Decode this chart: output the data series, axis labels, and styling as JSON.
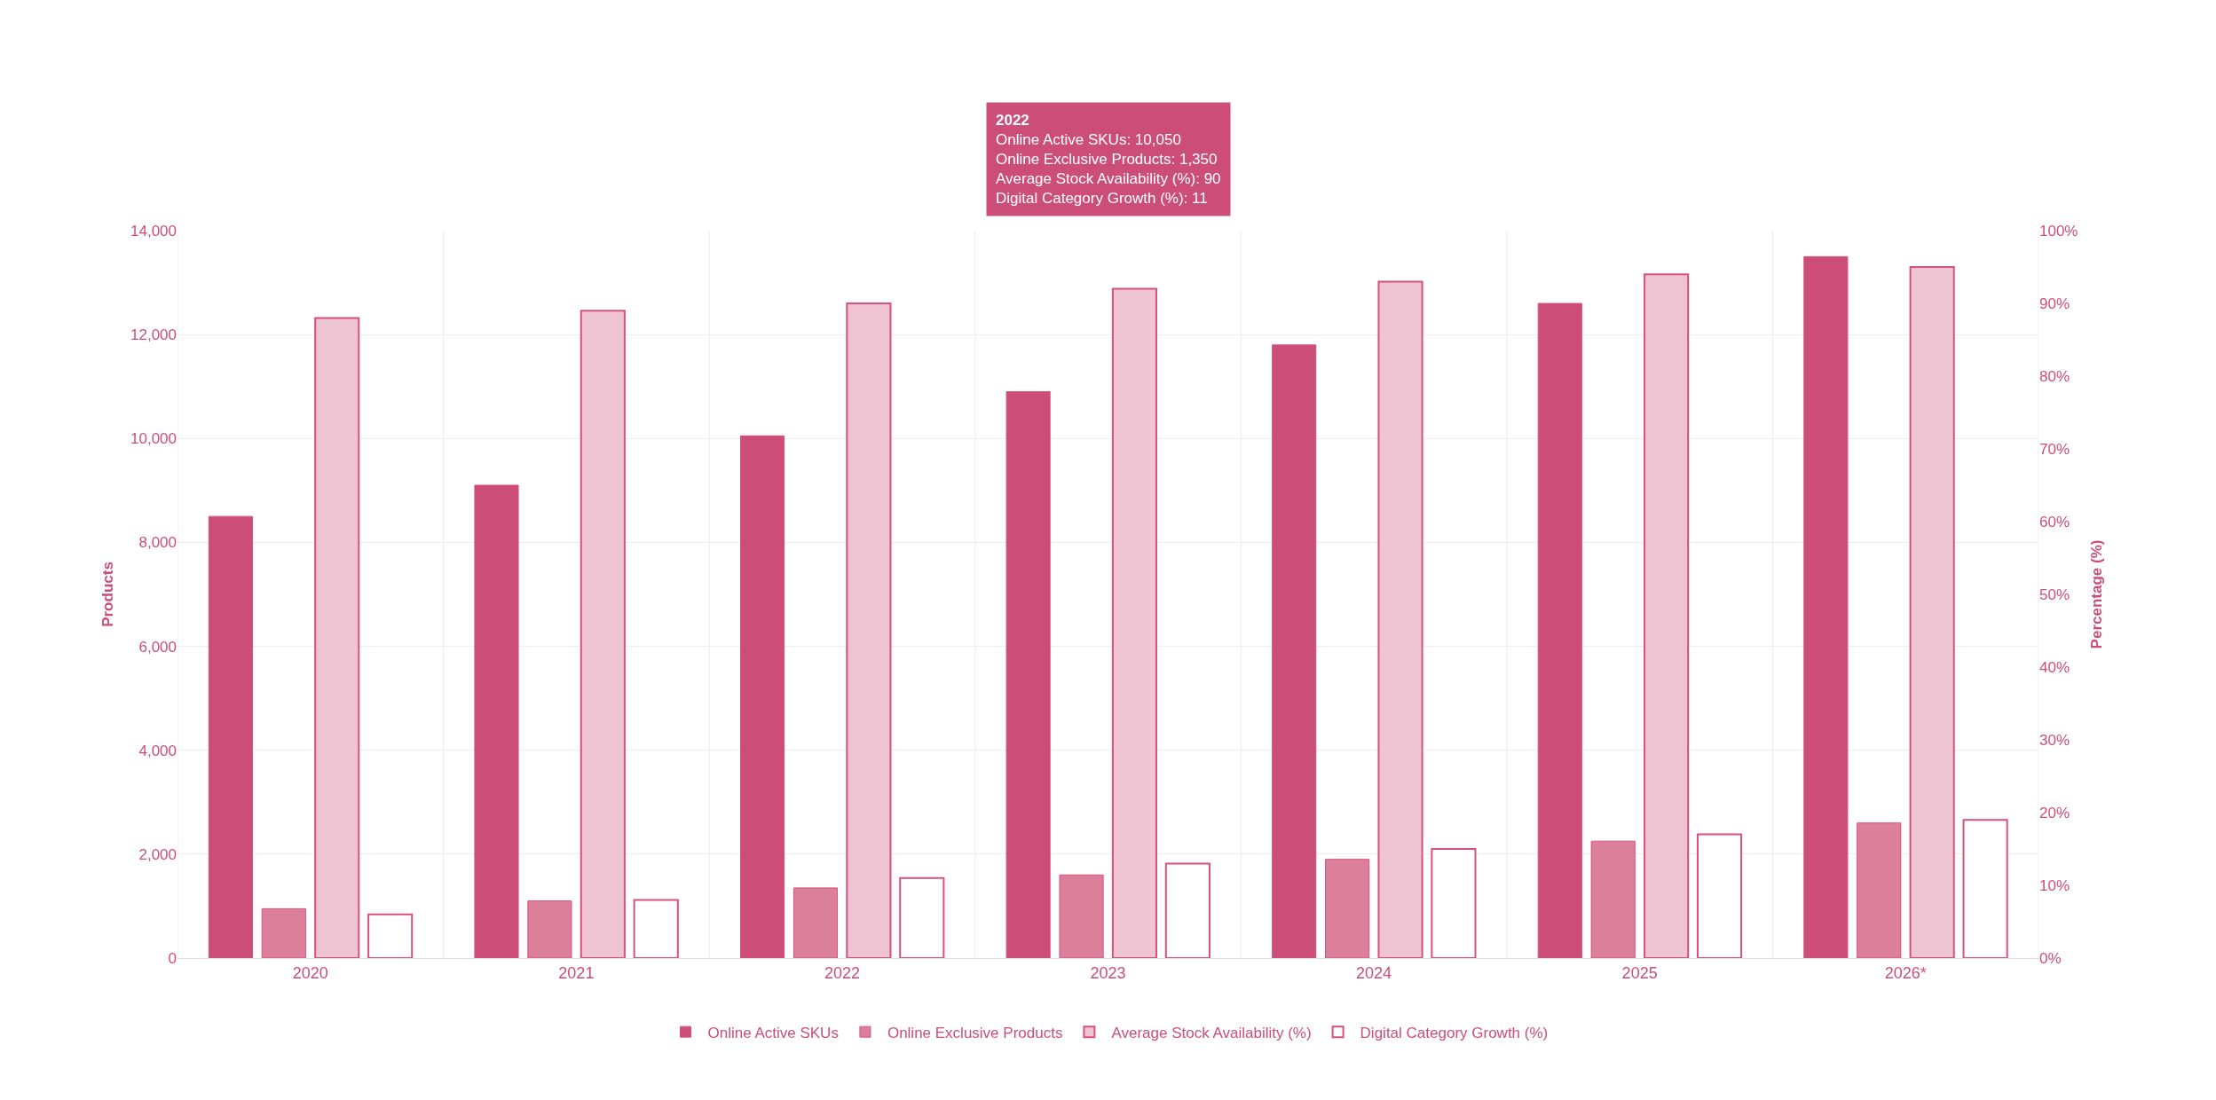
{
  "chart_data": {
    "type": "bar",
    "categories": [
      "2020",
      "2021",
      "2022",
      "2023",
      "2024",
      "2025",
      "2026*"
    ],
    "series": [
      {
        "name": "Online Active SKUs",
        "color": "#cc4e78",
        "values": [
          8500,
          9100,
          10050,
          10900,
          11800,
          12600,
          13500
        ]
      },
      {
        "name": "Online Exclusive Products",
        "color": "#dc7f9b",
        "values": [
          950,
          1100,
          1350,
          1600,
          1900,
          2250,
          2600
        ]
      },
      {
        "name": "Average Stock Availability (%)",
        "color": "#eec3d2",
        "axis": "y2",
        "values": [
          88,
          89,
          90,
          92,
          93,
          94,
          95
        ]
      },
      {
        "name": "Digital Category Growth (%)",
        "color": "#ffffff",
        "axis": "y2",
        "values": [
          6,
          8,
          11,
          13,
          15,
          17,
          19
        ]
      }
    ],
    "ylabel": "Products",
    "y2label": "Percentage (%)",
    "ylim": [
      0,
      14000
    ],
    "yticks": [
      {
        "value": 0,
        "label": "0"
      },
      {
        "value": 2000,
        "label": "2,000"
      },
      {
        "value": 4000,
        "label": "4,000"
      },
      {
        "value": 6000,
        "label": "6,000"
      },
      {
        "value": 8000,
        "label": "8,000"
      },
      {
        "value": 10000,
        "label": "10,000"
      },
      {
        "value": 12000,
        "label": "12,000"
      },
      {
        "value": 14000,
        "label": "14,000"
      }
    ],
    "y2lim": [
      0,
      100
    ],
    "y2ticks": [
      {
        "value": 0,
        "label": "0%"
      },
      {
        "value": 10,
        "label": "10%"
      },
      {
        "value": 20,
        "label": "20%"
      },
      {
        "value": 30,
        "label": "30%"
      },
      {
        "value": 40,
        "label": "40%"
      },
      {
        "value": 50,
        "label": "50%"
      },
      {
        "value": 60,
        "label": "60%"
      },
      {
        "value": 70,
        "label": "70%"
      },
      {
        "value": 80,
        "label": "80%"
      },
      {
        "value": 90,
        "label": "90%"
      },
      {
        "value": 100,
        "label": "100%"
      }
    ],
    "annotations": [
      "2022\nOnline Active SKUs: 10,050\nOnline Exclusive Products: 1,350\nAverage Stock Availability (%): 90\nDigital Category Growth (%): 11"
    ],
    "grid": true,
    "legend": "bottom"
  }
}
